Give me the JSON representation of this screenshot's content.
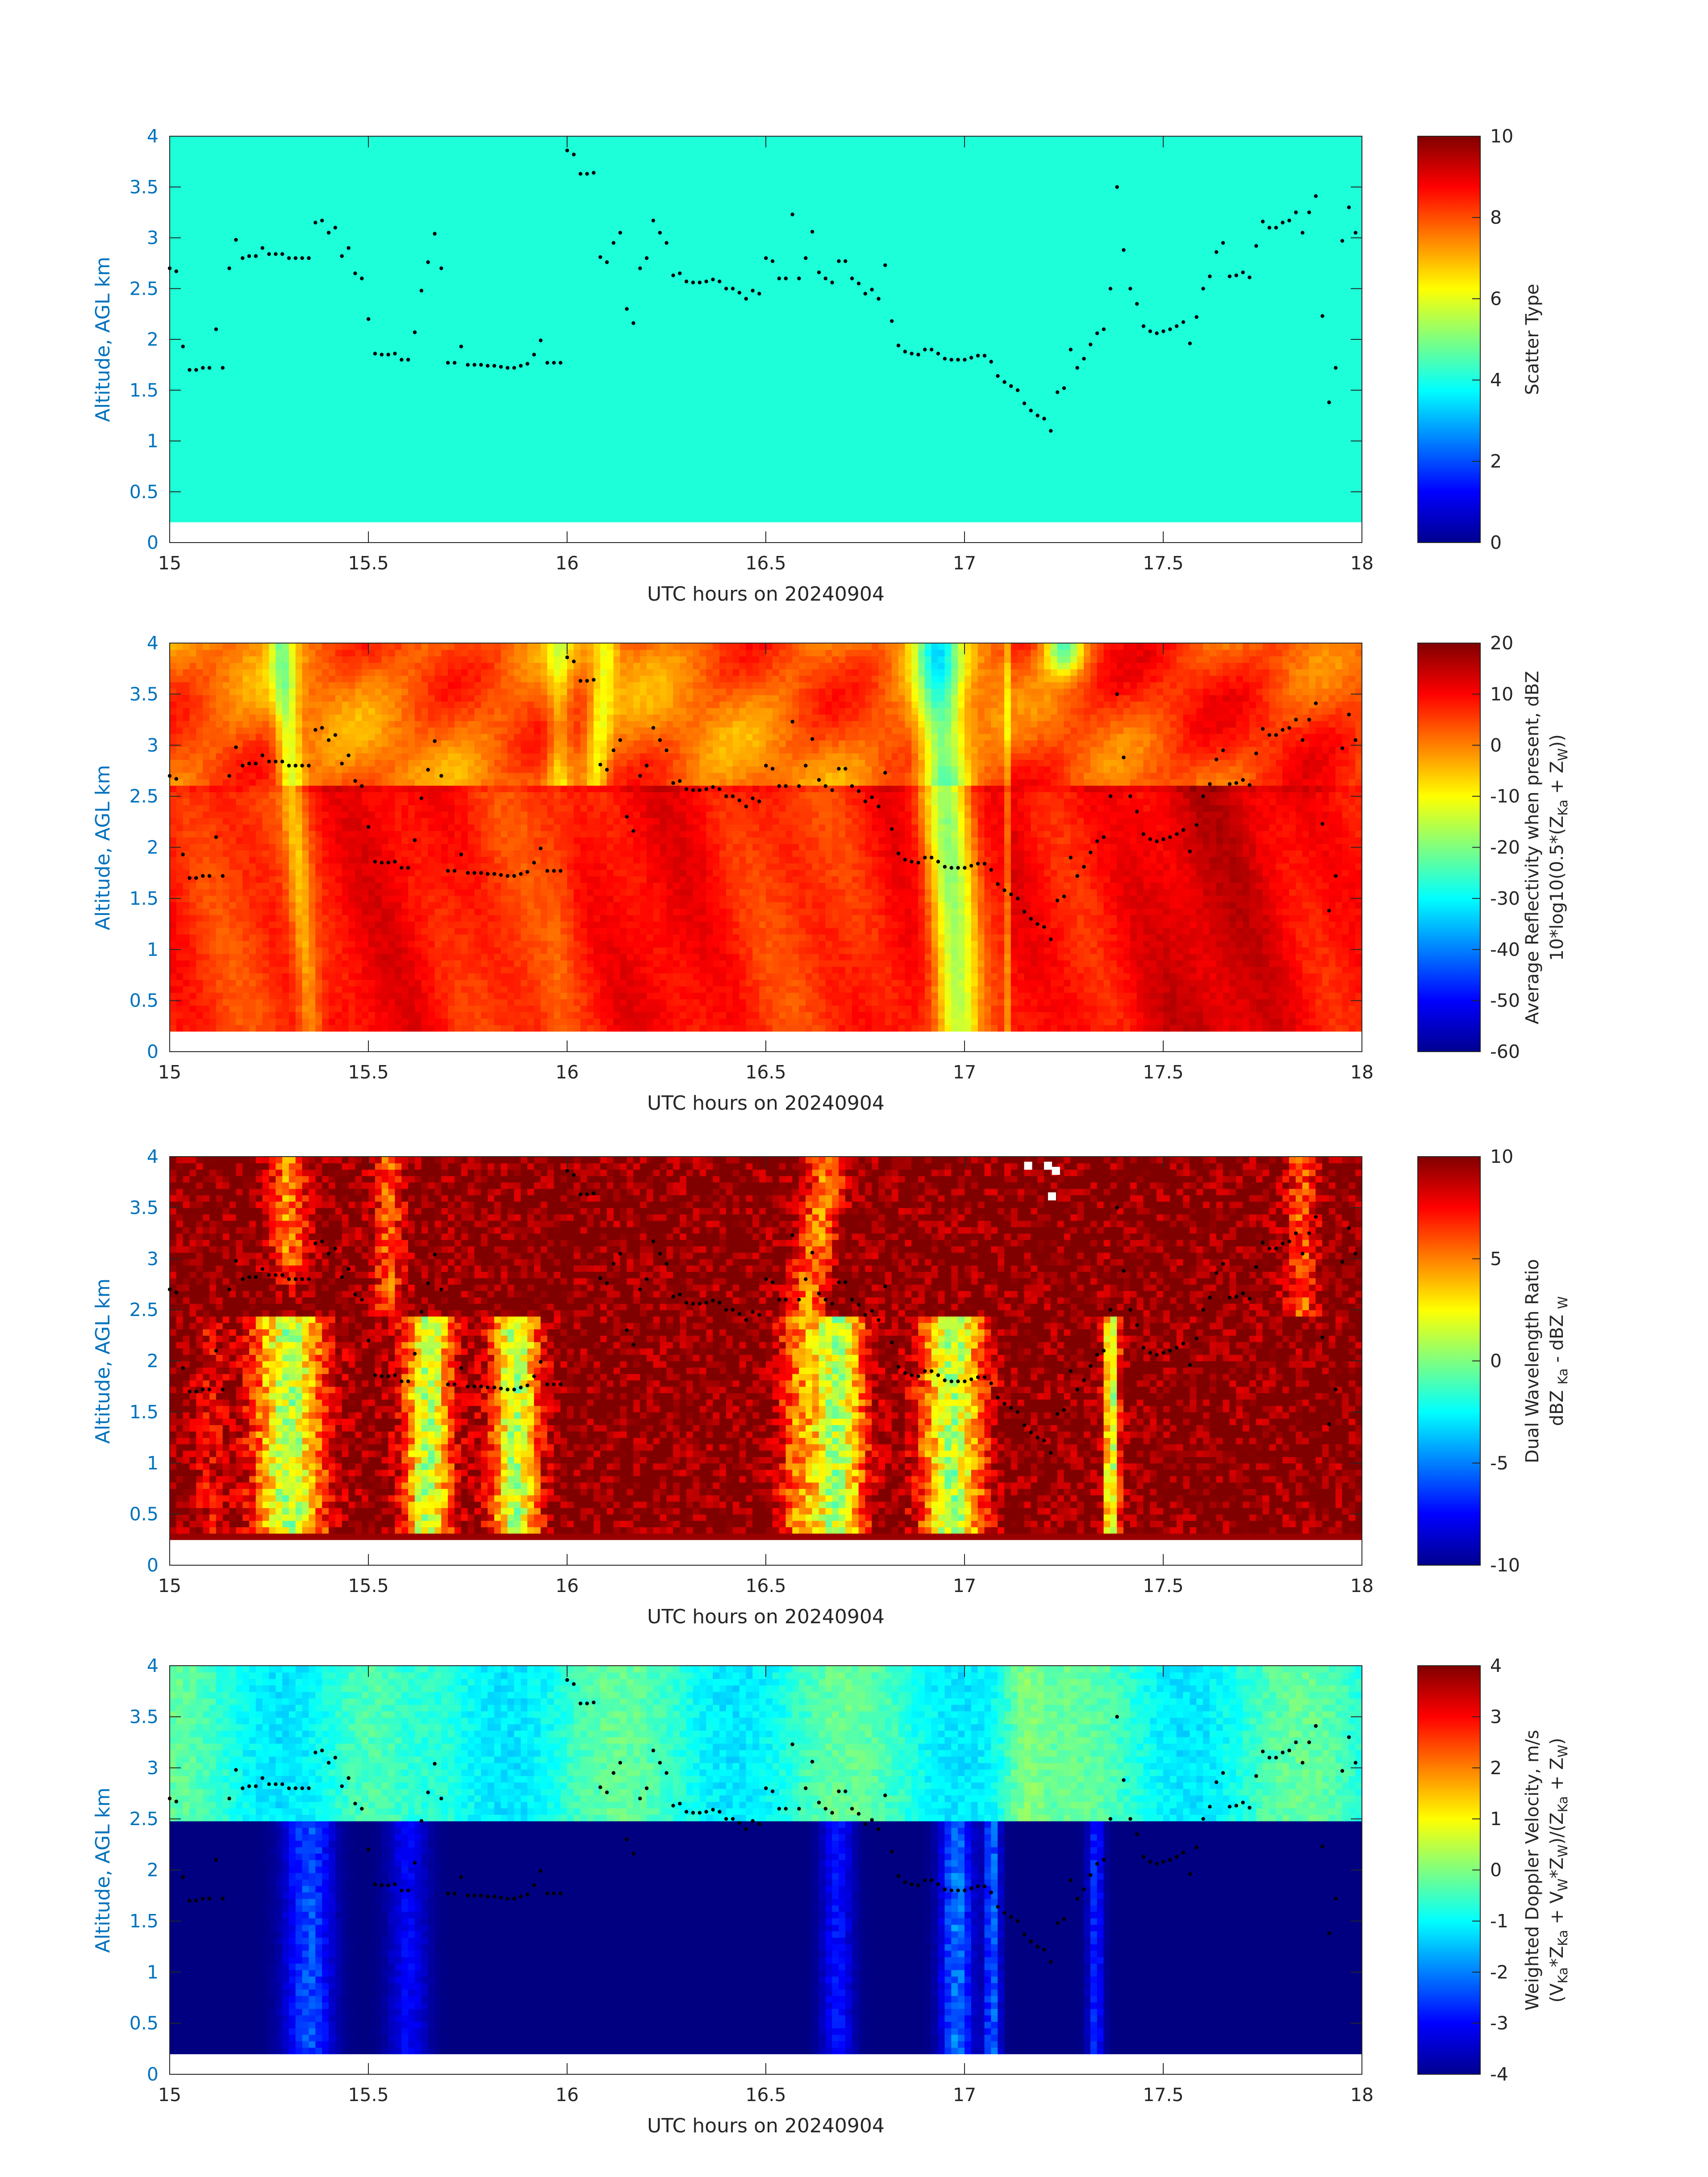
{
  "colors": {
    "axis_text": "#262626",
    "ylabel": "#0072BD",
    "scatter_fill": "#1cffd9",
    "points": "#000000"
  },
  "colormap": "jet",
  "chart_data": [
    {
      "type": "heatmap",
      "name": "scatter-type",
      "xlabel": "UTC hours on 20240904",
      "ylabel": "Altitude, AGL km",
      "xlim": [
        15,
        18
      ],
      "ylim": [
        0,
        4
      ],
      "xticks": [
        "15",
        "15.5",
        "16",
        "16.5",
        "17",
        "17.5",
        "18"
      ],
      "yticks": [
        "0",
        "0.5",
        "1",
        "1.5",
        "2",
        "2.5",
        "3",
        "3.5",
        "4"
      ],
      "data_altitude_range": [
        0.2,
        4.0
      ],
      "field": "uniform",
      "field_value": 4,
      "colorbar": {
        "label": "Scatter Type",
        "clim": [
          0,
          10
        ],
        "ticks": [
          "0",
          "2",
          "4",
          "6",
          "8",
          "10"
        ]
      },
      "overlay_points": true
    },
    {
      "type": "heatmap",
      "name": "reflectivity",
      "xlabel": "UTC hours on 20240904",
      "ylabel": "Altitude, AGL km",
      "xlim": [
        15,
        18
      ],
      "ylim": [
        0,
        4
      ],
      "xticks": [
        "15",
        "15.5",
        "16",
        "16.5",
        "17",
        "17.5",
        "18"
      ],
      "yticks": [
        "0",
        "0.5",
        "1",
        "1.5",
        "2",
        "2.5",
        "3",
        "3.5",
        "4"
      ],
      "data_altitude_range": [
        0.2,
        4.0
      ],
      "field": "reflectivity",
      "colorbar": {
        "label_line1": "Average Reflectivity when present, dBZ",
        "label_line2_parts": [
          "10*log10(0.5*(Z",
          "Ka",
          " + Z",
          "W",
          "))"
        ],
        "clim": [
          -60,
          20
        ],
        "ticks": [
          "-60",
          "-50",
          "-40",
          "-30",
          "-20",
          "-10",
          "0",
          "10",
          "20"
        ]
      },
      "overlay_points": true
    },
    {
      "type": "heatmap",
      "name": "dual-wavelength-ratio",
      "xlabel": "UTC hours on 20240904",
      "ylabel": "Altitude, AGL km",
      "xlim": [
        15,
        18
      ],
      "ylim": [
        0,
        4
      ],
      "xticks": [
        "15",
        "15.5",
        "16",
        "16.5",
        "17",
        "17.5",
        "18"
      ],
      "yticks": [
        "0",
        "0.5",
        "1",
        "1.5",
        "2",
        "2.5",
        "3",
        "3.5",
        "4"
      ],
      "data_altitude_range": [
        0.25,
        4.0
      ],
      "field": "dwr",
      "colorbar": {
        "label_line1": "Dual Wavelength Ratio",
        "label_line2_parts": [
          "dBZ ",
          "Ka",
          " - dBZ ",
          "W"
        ],
        "clim": [
          -10,
          10
        ],
        "ticks": [
          "-10",
          "-5",
          "0",
          "5",
          "10"
        ]
      },
      "overlay_points": true
    },
    {
      "type": "heatmap",
      "name": "doppler-velocity",
      "xlabel": "UTC hours on 20240904",
      "ylabel": "Altitude, AGL km",
      "xlim": [
        15,
        18
      ],
      "ylim": [
        0,
        4
      ],
      "xticks": [
        "15",
        "15.5",
        "16",
        "16.5",
        "17",
        "17.5",
        "18"
      ],
      "yticks": [
        "0",
        "0.5",
        "1",
        "1.5",
        "2",
        "2.5",
        "3",
        "3.5",
        "4"
      ],
      "data_altitude_range": [
        0.2,
        4.0
      ],
      "field": "velocity",
      "colorbar": {
        "label_line1": "Weighted Doppler Velocity, m/s",
        "label_line2_parts": [
          "(V",
          "Ka",
          "*Z",
          "Ka",
          " + V",
          "W",
          "*Z",
          "W",
          ")/(Z",
          "Ka",
          " + Z",
          "W",
          ")"
        ],
        "clim": [
          -4,
          4
        ],
        "ticks": [
          "-4",
          "-3",
          "-2",
          "-1",
          "0",
          "1",
          "2",
          "3",
          "4"
        ]
      },
      "overlay_points": true
    }
  ],
  "overlay_points": {
    "x_step_hours": 0.01667,
    "x_start": 15.0,
    "y_km": [
      2.7,
      2.67,
      1.93,
      1.7,
      1.7,
      1.72,
      1.72,
      2.1,
      1.72,
      2.7,
      2.98,
      2.8,
      2.82,
      2.82,
      2.9,
      2.84,
      2.84,
      2.84,
      2.8,
      2.8,
      2.8,
      2.8,
      3.15,
      3.17,
      3.05,
      3.1,
      2.82,
      2.9,
      2.65,
      2.6,
      2.2,
      1.86,
      1.85,
      1.85,
      1.86,
      1.8,
      1.8,
      2.07,
      2.48,
      2.76,
      3.04,
      2.7,
      1.77,
      1.77,
      1.93,
      1.75,
      1.75,
      1.75,
      1.74,
      1.74,
      1.73,
      1.72,
      1.72,
      1.74,
      1.76,
      1.85,
      1.99,
      1.77,
      1.77,
      1.77,
      3.86,
      3.82,
      3.63,
      3.63,
      3.64,
      2.81,
      2.76,
      2.95,
      3.05,
      2.3,
      2.16,
      2.7,
      2.8,
      3.17,
      3.05,
      2.95,
      2.63,
      2.65,
      2.57,
      2.56,
      2.56,
      2.57,
      2.59,
      2.57,
      2.5,
      2.5,
      2.46,
      2.4,
      2.48,
      2.45,
      2.8,
      2.77,
      2.6,
      2.6,
      3.23,
      2.6,
      2.8,
      3.06,
      2.66,
      2.6,
      2.56,
      2.77,
      2.77,
      2.6,
      2.55,
      2.45,
      2.49,
      2.4,
      2.73,
      2.18,
      1.94,
      1.88,
      1.86,
      1.85,
      1.9,
      1.9,
      1.86,
      1.81,
      1.8,
      1.8,
      1.8,
      1.82,
      1.84,
      1.84,
      1.78,
      1.64,
      1.58,
      1.54,
      1.5,
      1.37,
      1.3,
      1.25,
      1.22,
      1.1,
      1.48,
      1.52,
      1.9,
      1.72,
      1.81,
      1.95,
      2.06,
      2.1,
      2.5,
      3.5,
      2.88,
      2.5,
      2.35,
      2.13,
      2.08,
      2.06,
      2.08,
      2.1,
      2.13,
      2.17,
      1.96,
      2.22,
      2.5,
      2.62,
      2.86,
      2.95,
      2.62,
      2.63,
      2.66,
      2.61,
      2.92,
      3.16,
      3.1,
      3.1,
      3.15,
      3.17,
      3.25,
      3.05,
      3.25,
      3.41,
      2.23,
      1.38,
      1.72,
      2.97,
      3.3,
      3.05,
      2.98
    ]
  }
}
